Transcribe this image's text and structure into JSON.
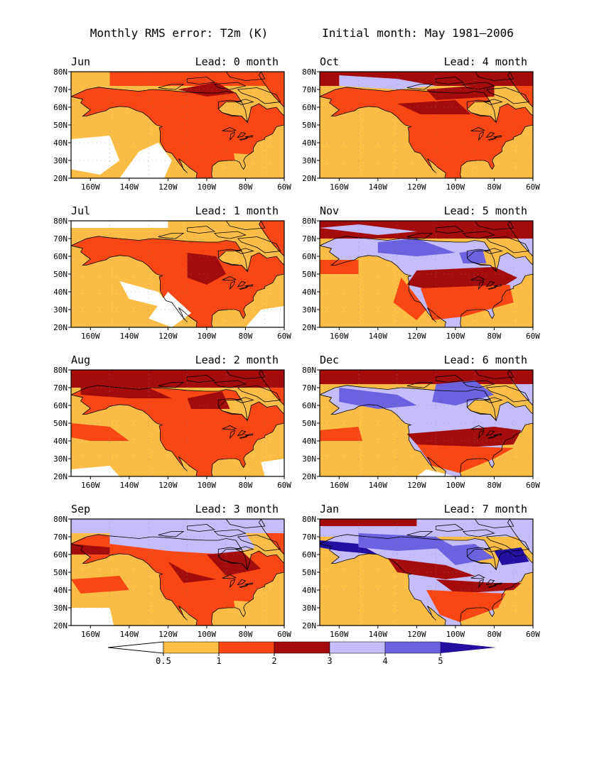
{
  "header": {
    "title_left": "Monthly RMS error: T2m (K)",
    "title_right": "Initial month: May 1981—2006"
  },
  "lead_prefix": "Lead:",
  "lead_suffix": "month",
  "lat_labels": [
    "80N",
    "70N",
    "60N",
    "50N",
    "40N",
    "30N",
    "20N"
  ],
  "lon_labels": [
    "160W",
    "140W",
    "120W",
    "100W",
    "80W",
    "60W"
  ],
  "panels": [
    {
      "month": "Jun",
      "lead": "0"
    },
    {
      "month": "Oct",
      "lead": "4"
    },
    {
      "month": "Jul",
      "lead": "1"
    },
    {
      "month": "Nov",
      "lead": "5"
    },
    {
      "month": "Aug",
      "lead": "2"
    },
    {
      "month": "Dec",
      "lead": "6"
    },
    {
      "month": "Sep",
      "lead": "3"
    },
    {
      "month": "Jan",
      "lead": "7"
    }
  ],
  "colorbar": {
    "tick_labels": [
      "0.5",
      "1",
      "2",
      "3",
      "4",
      "5"
    ],
    "colors": [
      "#ffffff",
      "#fbbd45",
      "#f84614",
      "#a30c0a",
      "#c4bcfb",
      "#6c62e0",
      "#230fa0"
    ]
  }
}
